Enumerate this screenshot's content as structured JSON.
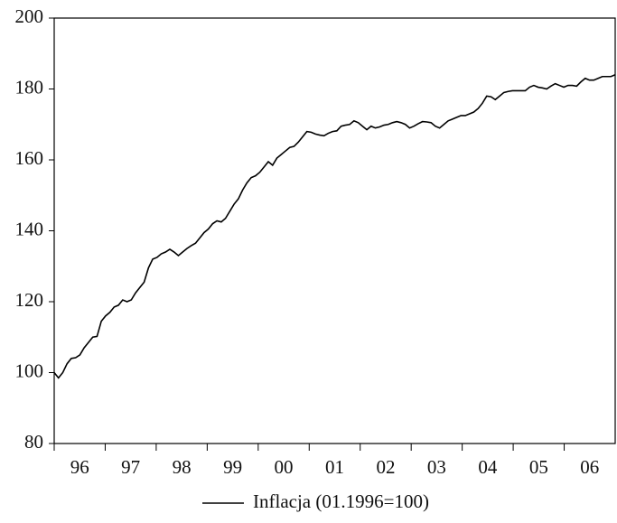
{
  "chart_data": {
    "type": "line",
    "categories": [
      "96",
      "97",
      "98",
      "99",
      "00",
      "01",
      "02",
      "03",
      "04",
      "05",
      "06"
    ],
    "series": [
      {
        "name": "Inflacja (01.1996=100)",
        "color": "#000000",
        "values": [
          [
            100.0,
            98.5,
            100,
            102.5,
            104,
            104.2,
            105,
            107,
            108.5,
            110,
            110.2,
            114.5
          ],
          [
            116,
            117,
            118.5,
            119,
            120.5,
            120,
            120.5,
            122.5,
            124,
            125.5,
            129.5,
            132
          ],
          [
            132.5,
            133.5,
            134,
            134.8,
            134,
            133,
            134,
            135,
            135.8,
            136.5,
            138,
            139.5
          ],
          [
            140.5,
            142,
            142.8,
            142.5,
            143.5,
            145.5,
            147.5,
            149,
            151.5,
            153.5,
            155,
            155.5
          ],
          [
            156.5,
            158,
            159.5,
            158.5,
            160.5,
            161.5,
            162.5,
            163.5,
            163.8,
            165,
            166.5,
            168
          ],
          [
            167.8,
            167.3,
            167,
            166.8,
            167.5,
            168,
            168.2,
            169.5,
            169.8,
            170,
            171,
            170.5
          ],
          [
            169.5,
            168.5,
            169.5,
            169,
            169.3,
            169.8,
            170,
            170.5,
            170.8,
            170.5,
            170,
            169
          ],
          [
            169.5,
            170.2,
            170.8,
            170.7,
            170.5,
            169.5,
            169,
            170,
            171,
            171.5,
            172,
            172.5
          ],
          [
            172.5,
            173,
            173.5,
            174.5,
            176,
            178,
            177.8,
            177,
            178,
            179,
            179.3,
            179.5
          ],
          [
            179.5,
            179.5,
            179.5,
            180.5,
            181,
            180.5,
            180.3,
            180,
            180.8,
            181.5,
            181,
            180.5
          ],
          [
            181,
            181,
            180.8,
            182,
            183,
            182.5,
            182.5,
            183,
            183.5,
            183.5,
            183.5,
            184
          ]
        ]
      }
    ],
    "ylim": [
      80,
      200
    ],
    "yticks": [
      80,
      100,
      120,
      140,
      160,
      180,
      200
    ],
    "grid": false,
    "legend": "bottom"
  }
}
